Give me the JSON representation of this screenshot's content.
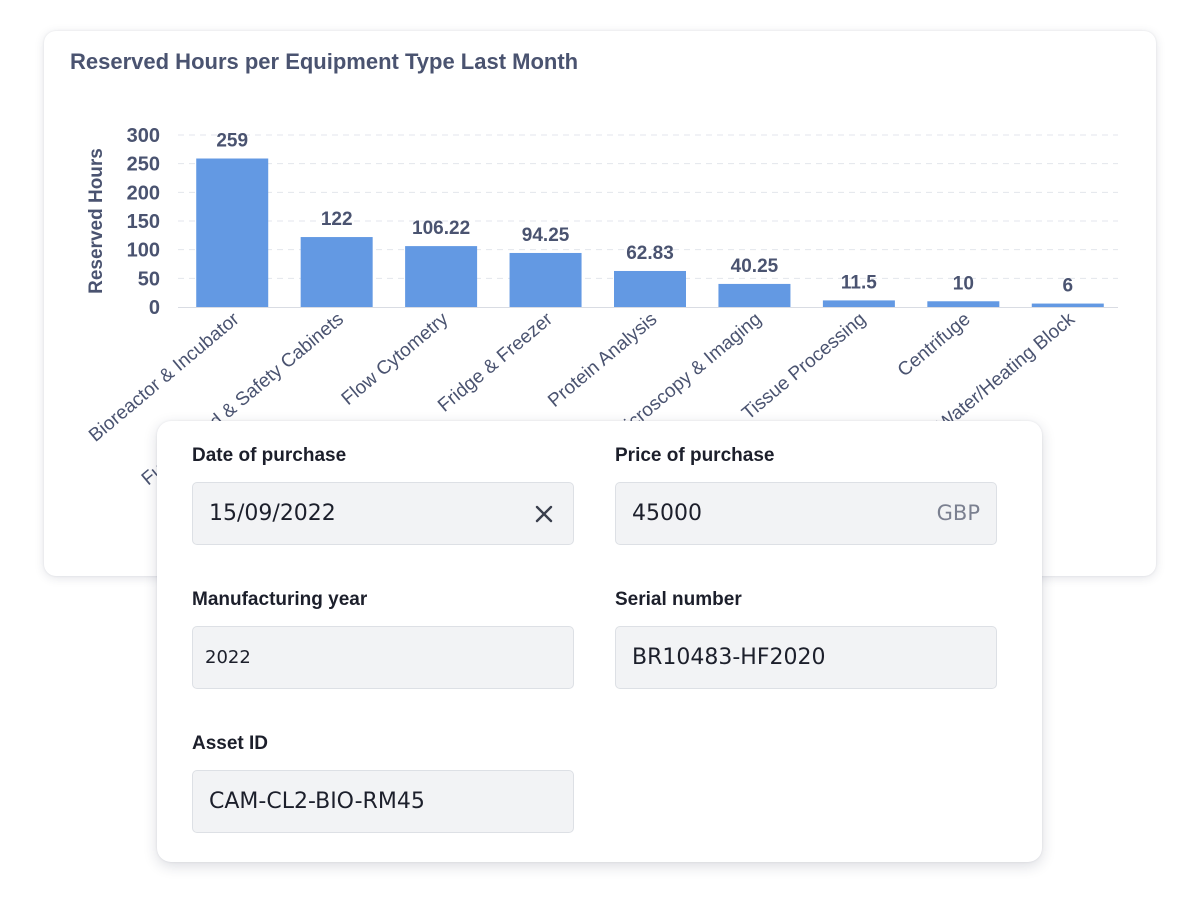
{
  "chart_card": {
    "title": "Reserved Hours per Equipment Type Last Month"
  },
  "chart_data": {
    "type": "bar",
    "title": "Reserved Hours per Equipment Type Last Month",
    "xlabel": "",
    "ylabel": "Reserved Hours",
    "ylim": [
      0,
      300
    ],
    "yticks": [
      0,
      50,
      100,
      150,
      200,
      250,
      300
    ],
    "grid": true,
    "bar_color": "#6399e3",
    "categories": [
      "Bioreactor & Incubator",
      "Fume Hood & Safety Cabinets",
      "Flow Cytometry",
      "Fridge & Freezer",
      "Protein Analysis",
      "Microscopy & Imaging",
      "Tissue Processing",
      "Centrifuge",
      "Water/Heating Block"
    ],
    "values": [
      259,
      122,
      106.22,
      94.25,
      62.83,
      40.25,
      11.5,
      10,
      6
    ],
    "data_labels": [
      "259",
      "122",
      "106.22",
      "94.25",
      "62.83",
      "40.25",
      "11.5",
      "10",
      "6"
    ]
  },
  "form": {
    "date_of_purchase": {
      "label": "Date of purchase",
      "value": "15/09/2022",
      "clear_icon": "close-icon"
    },
    "price_of_purchase": {
      "label": "Price of purchase",
      "value": "45000",
      "currency": "GBP"
    },
    "manufacturing_year": {
      "label": "Manufacturing year",
      "value": "2022"
    },
    "serial_number": {
      "label": "Serial number",
      "value": "BR10483-HF2020"
    },
    "asset_id": {
      "label": "Asset ID",
      "value": "CAM-CL2-BIO-RM45"
    }
  },
  "colors": {
    "bar": "#6399e3",
    "axis_text": "#4a5370",
    "field_background": "#f2f3f5",
    "label_text": "#1c1f2b"
  }
}
